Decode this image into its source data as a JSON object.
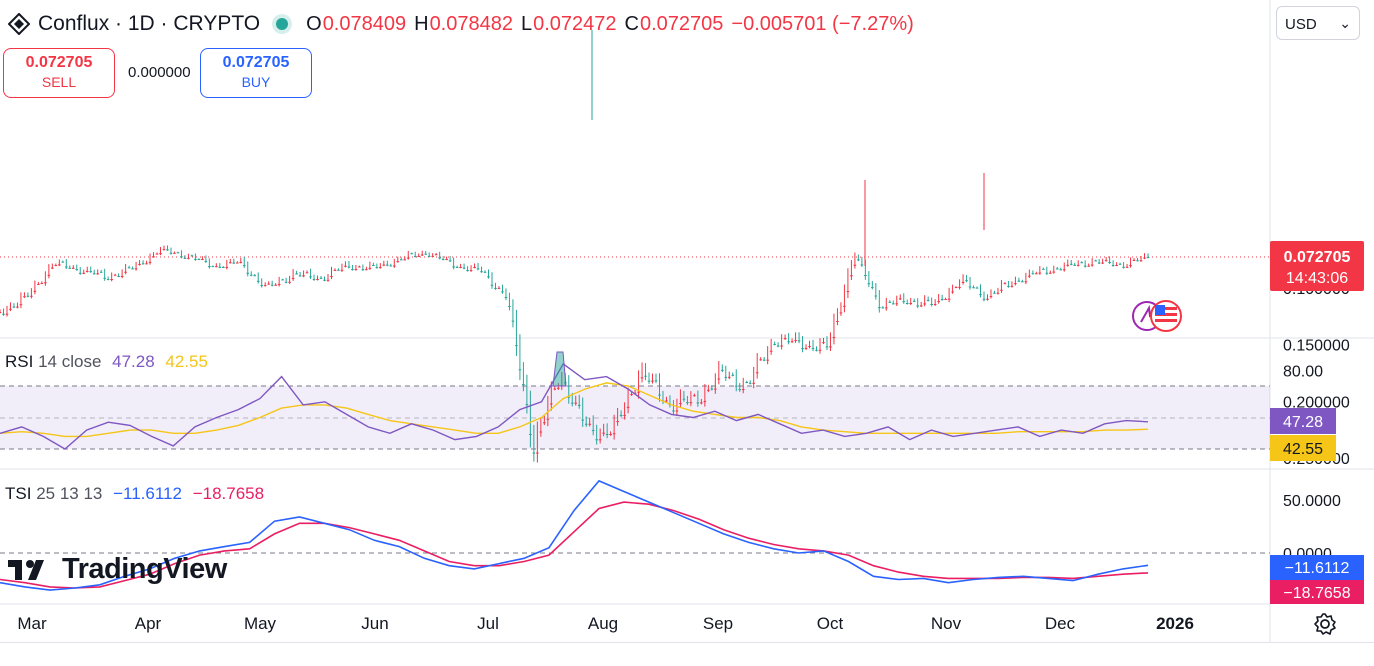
{
  "header": {
    "symbol": "Conflux · 1D · CRYPTO",
    "o_label": "O",
    "o_value": "0.078409",
    "h_label": "H",
    "h_value": "0.078482",
    "l_label": "L",
    "l_value": "0.072472",
    "c_label": "C",
    "c_value": "0.072705",
    "change": "−0.005701 (−7.27%)"
  },
  "trade": {
    "sell_price": "0.072705",
    "sell_label": "SELL",
    "spread": "0.000000",
    "buy_price": "0.072705",
    "buy_label": "BUY"
  },
  "currency": "USD",
  "rsi_legend": {
    "name": "RSI",
    "params": "14 close",
    "value": "47.28",
    "ma_value": "42.55"
  },
  "tsi_legend": {
    "name": "TSI",
    "params": "25 13 13",
    "value": "−11.6112",
    "signal_value": "−18.7658"
  },
  "watermark": "TradingView",
  "colors": {
    "up": "#26a69a",
    "down": "#f23645",
    "rsi": "#7e57c2",
    "rsi_ma": "#f5c518",
    "tsi": "#2962ff",
    "tsi_signal": "#e91e63",
    "price_label": "#f23645"
  },
  "chart_data": [
    {
      "type": "candlestick",
      "title": "Conflux · 1D · CRYPTO",
      "x_tick_labels": [
        "Mar",
        "Apr",
        "May",
        "Jun",
        "Jul",
        "Aug",
        "Sep",
        "Oct",
        "Nov",
        "Dec",
        "2026"
      ],
      "y_tick_labels": [
        "0.250000",
        "0.200000",
        "0.150000",
        "0.100000"
      ],
      "ylim": [
        0.035,
        0.275
      ],
      "last_price": "0.072705",
      "countdown": "14:43:06",
      "close_series": {
        "months": [
          "Mar",
          "Apr",
          "May",
          "Jun",
          "Jul",
          "Aug",
          "Sep",
          "Oct",
          "Nov",
          "Dec",
          "2026"
        ],
        "points": [
          [
            "Mar",
            0.12
          ],
          [
            "Mar",
            0.108
          ],
          [
            "Mar",
            0.078
          ],
          [
            "Mar",
            0.083
          ],
          [
            "Apr",
            0.09
          ],
          [
            "Apr",
            0.082
          ],
          [
            "Apr",
            0.066
          ],
          [
            "Apr",
            0.071
          ],
          [
            "May",
            0.08
          ],
          [
            "May",
            0.077
          ],
          [
            "May",
            0.1
          ],
          [
            "May",
            0.087
          ],
          [
            "Jun",
            0.091
          ],
          [
            "Jun",
            0.08
          ],
          [
            "Jun",
            0.082
          ],
          [
            "Jun",
            0.074
          ],
          [
            "Jul",
            0.068
          ],
          [
            "Jul",
            0.079
          ],
          [
            "Jul",
            0.084
          ],
          [
            "Jul",
            0.107
          ],
          [
            "Jul",
            0.238
          ],
          [
            "Jul",
            0.175
          ],
          [
            "Aug",
            0.224
          ],
          [
            "Aug",
            0.225
          ],
          [
            "Aug",
            0.172
          ],
          [
            "Aug",
            0.2
          ],
          [
            "Sep",
            0.2
          ],
          [
            "Sep",
            0.175
          ],
          [
            "Sep",
            0.185
          ],
          [
            "Sep",
            0.145
          ],
          [
            "Oct",
            0.148
          ],
          [
            "Oct",
            0.152
          ],
          [
            "Oct",
            0.07
          ],
          [
            "Oct",
            0.115
          ],
          [
            "Oct",
            0.11
          ],
          [
            "Nov",
            0.114
          ],
          [
            "Nov",
            0.093
          ],
          [
            "Nov",
            0.107
          ],
          [
            "Nov",
            0.093
          ],
          [
            "Nov",
            0.085
          ],
          [
            "Dec",
            0.08
          ],
          [
            "Dec",
            0.076
          ],
          [
            "Dec",
            0.079
          ],
          [
            "Dec",
            0.072705
          ]
        ]
      }
    },
    {
      "type": "line",
      "title": "RSI 14 close",
      "y_tick_labels": [
        "80.00"
      ],
      "levels": [
        70,
        50,
        30
      ],
      "ylim": [
        20,
        90
      ],
      "series": [
        {
          "name": "RSI",
          "values": [
            40,
            44,
            38,
            30,
            42,
            47,
            45,
            38,
            32,
            44,
            50,
            55,
            62,
            76,
            58,
            60,
            52,
            44,
            40,
            46,
            42,
            36,
            38,
            44,
            55,
            60,
            84,
            74,
            76,
            68,
            58,
            52,
            50,
            54,
            48,
            52,
            46,
            40,
            42,
            38,
            40,
            44,
            36,
            42,
            38,
            40,
            42,
            44,
            38,
            42,
            40,
            46,
            48,
            47.28
          ]
        },
        {
          "name": "RSI-MA",
          "values": [
            40,
            41,
            40,
            38,
            38,
            40,
            42,
            42,
            40,
            40,
            42,
            45,
            50,
            56,
            58,
            58,
            56,
            52,
            48,
            46,
            44,
            42,
            40,
            40,
            44,
            50,
            62,
            68,
            72,
            70,
            64,
            58,
            54,
            52,
            50,
            50,
            48,
            44,
            42,
            41,
            40,
            40,
            40,
            40,
            40,
            40,
            40,
            41,
            41,
            41,
            41,
            42,
            42,
            42.55
          ]
        }
      ]
    },
    {
      "type": "line",
      "title": "TSI 25 13 13",
      "y_tick_labels": [
        "50.0000",
        "0.0000"
      ],
      "ylim": [
        -40,
        75
      ],
      "series": [
        {
          "name": "TSI",
          "values": [
            -28,
            -32,
            -35,
            -33,
            -30,
            -22,
            -15,
            -5,
            2,
            6,
            10,
            30,
            34,
            28,
            22,
            12,
            6,
            -5,
            -12,
            -15,
            -10,
            -5,
            5,
            40,
            68,
            58,
            48,
            38,
            28,
            18,
            10,
            4,
            0,
            2,
            -8,
            -22,
            -25,
            -24,
            -28,
            -25,
            -23,
            -22,
            -24,
            -26,
            -20,
            -15,
            -11.6112
          ]
        },
        {
          "name": "TSI-signal",
          "values": [
            -25,
            -28,
            -32,
            -33,
            -32,
            -26,
            -20,
            -10,
            -2,
            2,
            4,
            18,
            28,
            28,
            24,
            18,
            12,
            2,
            -8,
            -12,
            -12,
            -8,
            -2,
            20,
            42,
            48,
            46,
            40,
            32,
            22,
            14,
            8,
            4,
            2,
            -2,
            -12,
            -18,
            -22,
            -24,
            -24,
            -24,
            -23,
            -23,
            -24,
            -22,
            -20,
            -18.7658
          ]
        }
      ]
    }
  ]
}
